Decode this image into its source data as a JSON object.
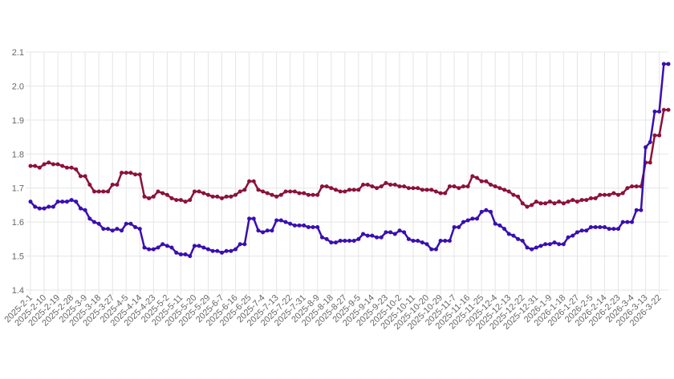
{
  "chart_data": {
    "type": "line",
    "categories": [
      "2025-2-1",
      null,
      null,
      "2025-2-10",
      null,
      null,
      "2025-2-19",
      null,
      null,
      "2025-2-28",
      null,
      null,
      "2025-3-9",
      null,
      null,
      "2025-3-18",
      null,
      null,
      "2025-3-27",
      null,
      null,
      "2025-4-5",
      null,
      null,
      "2025-4-14",
      null,
      null,
      "2025-4-23",
      null,
      null,
      "2025-5-2",
      null,
      null,
      "2025-5-11",
      null,
      null,
      "2025-5-20",
      null,
      null,
      "2025-5-29",
      null,
      null,
      "2025-6-7",
      null,
      null,
      "2025-6-16",
      null,
      null,
      "2025-6-25",
      null,
      null,
      "2025-7-4",
      null,
      null,
      "2025-7-13",
      null,
      null,
      "2025-7-22",
      null,
      null,
      "2025-7-31",
      null,
      null,
      "2025-8-9",
      null,
      null,
      "2025-8-18",
      null,
      null,
      "2025-8-27",
      null,
      null,
      "2025-9-5",
      null,
      null,
      "2025-9-14",
      null,
      null,
      "2025-9-23",
      null,
      null,
      "2025-10-2",
      null,
      null,
      "2025-10-11",
      null,
      null,
      "2025-10-20",
      null,
      null,
      "2025-10-29",
      null,
      null,
      "2025-11-7",
      null,
      null,
      "2025-11-16",
      null,
      null,
      "2025-11-25",
      null,
      null,
      "2025-12-4",
      null,
      null,
      "2025-12-13",
      null,
      null,
      "2025-12-22",
      null,
      null,
      "2025-12-31",
      null,
      null,
      "2026-1-9",
      null,
      null,
      "2026-1-18",
      null,
      null,
      "2026-1-27",
      null,
      null,
      "2026-2-5",
      null,
      null,
      "2026-2-14",
      null,
      null,
      "2026-2-23",
      null,
      null,
      "2026-3-4",
      null,
      null,
      "2026-3-13",
      null,
      null,
      "2026-3-22",
      null,
      null
    ],
    "series": [
      {
        "color": "#8b1238",
        "values": [
          1.765,
          1.765,
          1.76,
          1.77,
          1.775,
          1.77,
          1.77,
          1.765,
          1.76,
          1.76,
          1.755,
          1.735,
          1.735,
          1.71,
          1.69,
          1.69,
          1.69,
          1.69,
          1.71,
          1.71,
          1.745,
          1.745,
          1.745,
          1.74,
          1.74,
          1.675,
          1.67,
          1.675,
          1.69,
          1.685,
          1.68,
          1.67,
          1.665,
          1.665,
          1.66,
          1.665,
          1.69,
          1.69,
          1.685,
          1.68,
          1.675,
          1.675,
          1.67,
          1.675,
          1.675,
          1.68,
          1.69,
          1.695,
          1.72,
          1.72,
          1.695,
          1.69,
          1.685,
          1.68,
          1.675,
          1.68,
          1.69,
          1.69,
          1.69,
          1.685,
          1.685,
          1.68,
          1.68,
          1.68,
          1.705,
          1.705,
          1.7,
          1.695,
          1.69,
          1.69,
          1.695,
          1.695,
          1.695,
          1.71,
          1.71,
          1.705,
          1.7,
          1.705,
          1.715,
          1.71,
          1.71,
          1.705,
          1.705,
          1.7,
          1.7,
          1.7,
          1.695,
          1.695,
          1.695,
          1.69,
          1.685,
          1.685,
          1.705,
          1.705,
          1.7,
          1.705,
          1.705,
          1.735,
          1.73,
          1.72,
          1.72,
          1.71,
          1.705,
          1.7,
          1.695,
          1.69,
          1.68,
          1.675,
          1.655,
          1.645,
          1.65,
          1.66,
          1.655,
          1.655,
          1.66,
          1.655,
          1.66,
          1.655,
          1.66,
          1.665,
          1.66,
          1.665,
          1.665,
          1.67,
          1.67,
          1.68,
          1.68,
          1.68,
          1.685,
          1.68,
          1.685,
          1.7,
          1.705,
          1.705,
          1.705,
          1.775,
          1.775,
          1.855,
          1.855,
          1.93,
          1.93
        ]
      },
      {
        "color": "#3a0fb0",
        "values": [
          1.66,
          1.645,
          1.64,
          1.64,
          1.645,
          1.645,
          1.66,
          1.66,
          1.66,
          1.665,
          1.66,
          1.64,
          1.635,
          1.61,
          1.6,
          1.595,
          1.58,
          1.58,
          1.575,
          1.58,
          1.575,
          1.595,
          1.595,
          1.585,
          1.58,
          1.525,
          1.52,
          1.52,
          1.525,
          1.535,
          1.53,
          1.525,
          1.51,
          1.505,
          1.505,
          1.5,
          1.53,
          1.53,
          1.525,
          1.52,
          1.515,
          1.515,
          1.51,
          1.515,
          1.515,
          1.52,
          1.535,
          1.535,
          1.61,
          1.61,
          1.575,
          1.57,
          1.575,
          1.575,
          1.605,
          1.605,
          1.6,
          1.595,
          1.59,
          1.59,
          1.59,
          1.585,
          1.585,
          1.585,
          1.555,
          1.55,
          1.54,
          1.54,
          1.545,
          1.545,
          1.545,
          1.545,
          1.55,
          1.565,
          1.56,
          1.56,
          1.555,
          1.555,
          1.57,
          1.57,
          1.565,
          1.575,
          1.57,
          1.55,
          1.545,
          1.545,
          1.54,
          1.535,
          1.52,
          1.52,
          1.545,
          1.545,
          1.545,
          1.585,
          1.585,
          1.6,
          1.605,
          1.61,
          1.61,
          1.63,
          1.635,
          1.63,
          1.595,
          1.59,
          1.58,
          1.565,
          1.56,
          1.55,
          1.545,
          1.525,
          1.52,
          1.525,
          1.53,
          1.535,
          1.535,
          1.54,
          1.535,
          1.535,
          1.555,
          1.56,
          1.57,
          1.575,
          1.575,
          1.585,
          1.585,
          1.585,
          1.585,
          1.58,
          1.58,
          1.58,
          1.6,
          1.6,
          1.6,
          1.635,
          1.635,
          1.82,
          1.835,
          1.925,
          1.925,
          2.065,
          2.065
        ]
      }
    ],
    "ylim": [
      1.4,
      2.1
    ],
    "yticks": [
      1.4,
      1.5,
      1.6,
      1.7,
      1.8,
      1.9,
      {
        "value": 2,
        "label": "2.0"
      },
      2.1
    ],
    "grid": true
  }
}
